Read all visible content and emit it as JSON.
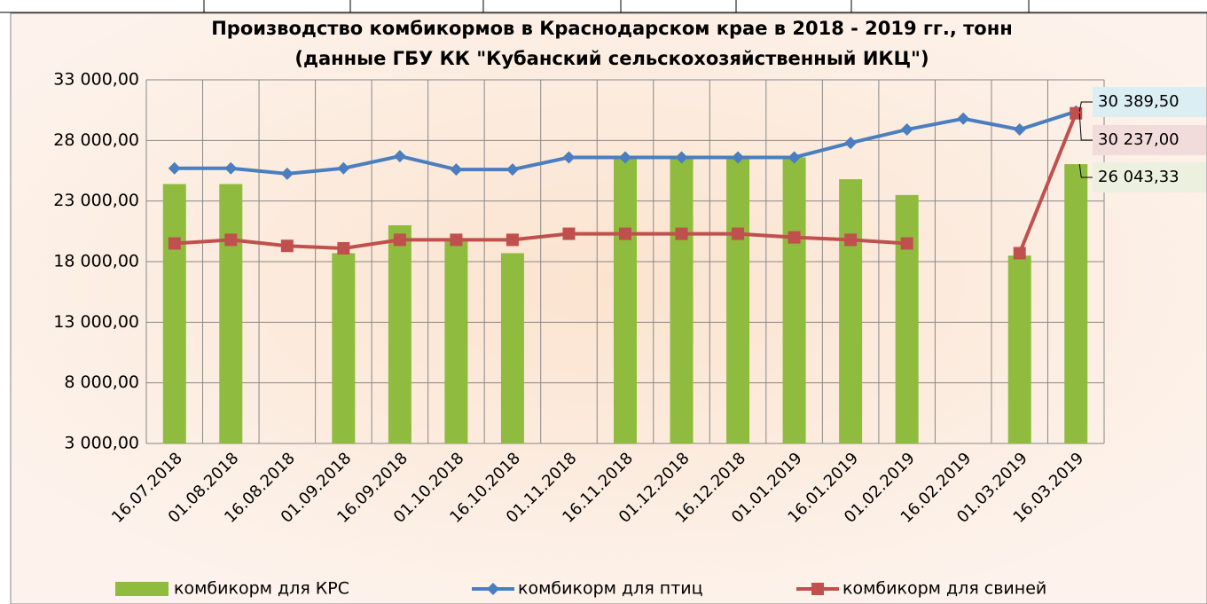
{
  "chart_data": {
    "type": "bar-line",
    "title": "Производство комбикормов в Краснодарском крае в 2018 - 2019 гг., тонн",
    "subtitle": "(данные ГБУ КК \"Кубанский сельскохозяйственный ИКЦ\")",
    "categories": [
      "16.07.2018",
      "01.08.2018",
      "16.08.2018",
      "01.09.2018",
      "16.09.2018",
      "01.10.2018",
      "16.10.2018",
      "01.11.2018",
      "16.11.2018",
      "01.12.2018",
      "16.12.2018",
      "01.01.2019",
      "16.01.2019",
      "01.02.2019",
      "16.02.2019",
      "01.03.2019",
      "16.03.2019"
    ],
    "series": [
      {
        "name": "комбикорм для КРС",
        "type": "bar",
        "color": "#8fbc3f",
        "values": [
          24400,
          24400,
          null,
          18700,
          21000,
          19900,
          18700,
          null,
          26600,
          26600,
          26600,
          26600,
          24800,
          23500,
          null,
          18500,
          26043.33
        ],
        "value_labels": [
          null,
          null,
          null,
          null,
          null,
          null,
          null,
          null,
          null,
          null,
          null,
          null,
          null,
          null,
          null,
          null,
          "26 043,33"
        ]
      },
      {
        "name": "комбикорм для птиц",
        "type": "line",
        "color": "#4a7ebf",
        "values": [
          25700,
          25700,
          25250,
          25700,
          26700,
          25600,
          25600,
          26600,
          26600,
          26600,
          26600,
          26600,
          27800,
          28900,
          29800,
          28900,
          30389.5
        ],
        "value_labels": [
          null,
          null,
          null,
          null,
          null,
          null,
          null,
          null,
          null,
          null,
          null,
          null,
          null,
          null,
          null,
          null,
          "30 389,50"
        ]
      },
      {
        "name": "комбикорм для свиней",
        "type": "line",
        "color": "#c0504d",
        "values": [
          19500,
          19800,
          19300,
          19100,
          19800,
          19800,
          19800,
          20300,
          20300,
          20300,
          20300,
          20000,
          19800,
          19500,
          null,
          18700,
          30237
        ],
        "value_labels": [
          null,
          null,
          null,
          null,
          null,
          null,
          null,
          null,
          null,
          null,
          null,
          null,
          null,
          null,
          null,
          null,
          "30 237,00"
        ]
      }
    ],
    "ylim": [
      3000,
      33000
    ],
    "yticks": [
      {
        "value": 3000,
        "label": "3 000,00"
      },
      {
        "value": 8000,
        "label": "8 000,00"
      },
      {
        "value": 13000,
        "label": "13 000,00"
      },
      {
        "value": 18000,
        "label": "18 000,00"
      },
      {
        "value": 23000,
        "label": "23 000,00"
      },
      {
        "value": 28000,
        "label": "28 000,00"
      },
      {
        "value": 33000,
        "label": "33 000,00"
      }
    ],
    "grid": true,
    "legend": "bottom"
  }
}
